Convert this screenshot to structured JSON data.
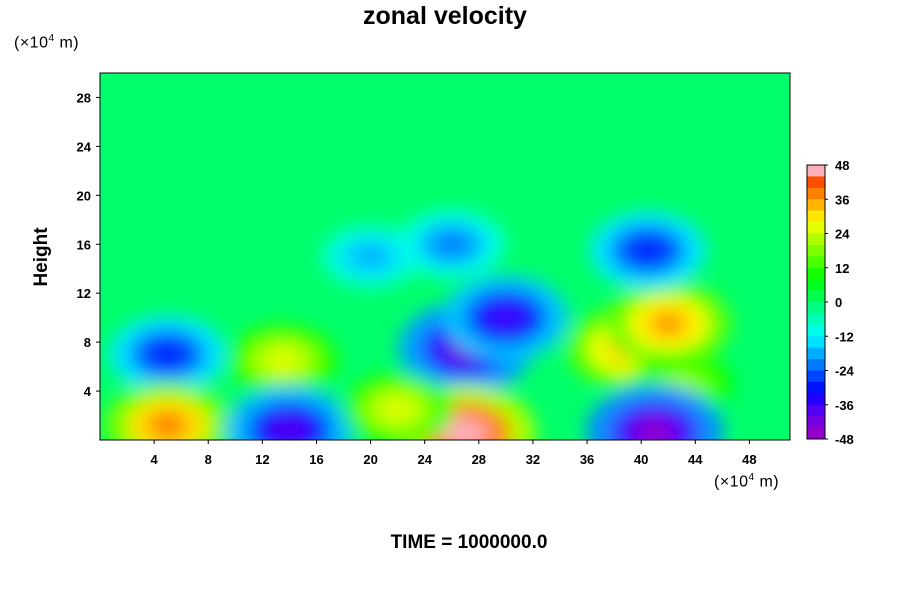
{
  "chart_data": {
    "type": "heatmap",
    "title": "zonal velocity",
    "ylabel": "Height",
    "xlabel": "",
    "x_unit": {
      "prefix": "(×10",
      "exp": "4",
      "suffix": " m)"
    },
    "y_unit": {
      "prefix": "(×10",
      "exp": "4",
      "suffix": " m)"
    },
    "footer": "TIME = 1000000.0",
    "xlim": [
      0,
      51
    ],
    "ylim": [
      0,
      30
    ],
    "xticks": [
      "4",
      "8",
      "12",
      "16",
      "20",
      "24",
      "28",
      "32",
      "36",
      "40",
      "44",
      "48"
    ],
    "yticks": [
      "4",
      "8",
      "12",
      "16",
      "20",
      "24",
      "28"
    ],
    "colorbar": {
      "ticks": [
        "48",
        "36",
        "24",
        "12",
        "0",
        "-12",
        "-24",
        "-36",
        "-48"
      ],
      "range": [
        -48,
        48
      ],
      "step": 4
    },
    "background_value": 0,
    "features": [
      {
        "x": 5,
        "y": 7,
        "value": -30,
        "label": "negative cell"
      },
      {
        "x": 13.5,
        "y": 6.5,
        "value": 26,
        "label": "positive cell"
      },
      {
        "x": 27,
        "y": 7.5,
        "value": -42,
        "label": "negative cell"
      },
      {
        "x": 39,
        "y": 7.5,
        "value": 34,
        "label": "positive cell"
      },
      {
        "x": 42,
        "y": 9.5,
        "value": 36,
        "label": "positive cell"
      },
      {
        "x": 43,
        "y": 4.5,
        "value": 20,
        "label": "positive cell"
      },
      {
        "x": 5,
        "y": 1.2,
        "value": 38,
        "label": "positive cell"
      },
      {
        "x": 14,
        "y": 0.8,
        "value": -38,
        "label": "negative cell"
      },
      {
        "x": 27,
        "y": 0.5,
        "value": 48,
        "label": "positive cell"
      },
      {
        "x": 41,
        "y": 0.6,
        "value": -45,
        "label": "negative cell"
      },
      {
        "x": 30,
        "y": 10,
        "value": -36,
        "label": "negative cell"
      },
      {
        "x": 20,
        "y": 15,
        "value": -18,
        "label": "negative cell"
      },
      {
        "x": 26,
        "y": 16,
        "value": -22,
        "label": "negative cell"
      },
      {
        "x": 40.5,
        "y": 15.5,
        "value": -30,
        "label": "negative cell"
      },
      {
        "x": 22,
        "y": 2.5,
        "value": 26,
        "label": "positive cell"
      }
    ]
  }
}
